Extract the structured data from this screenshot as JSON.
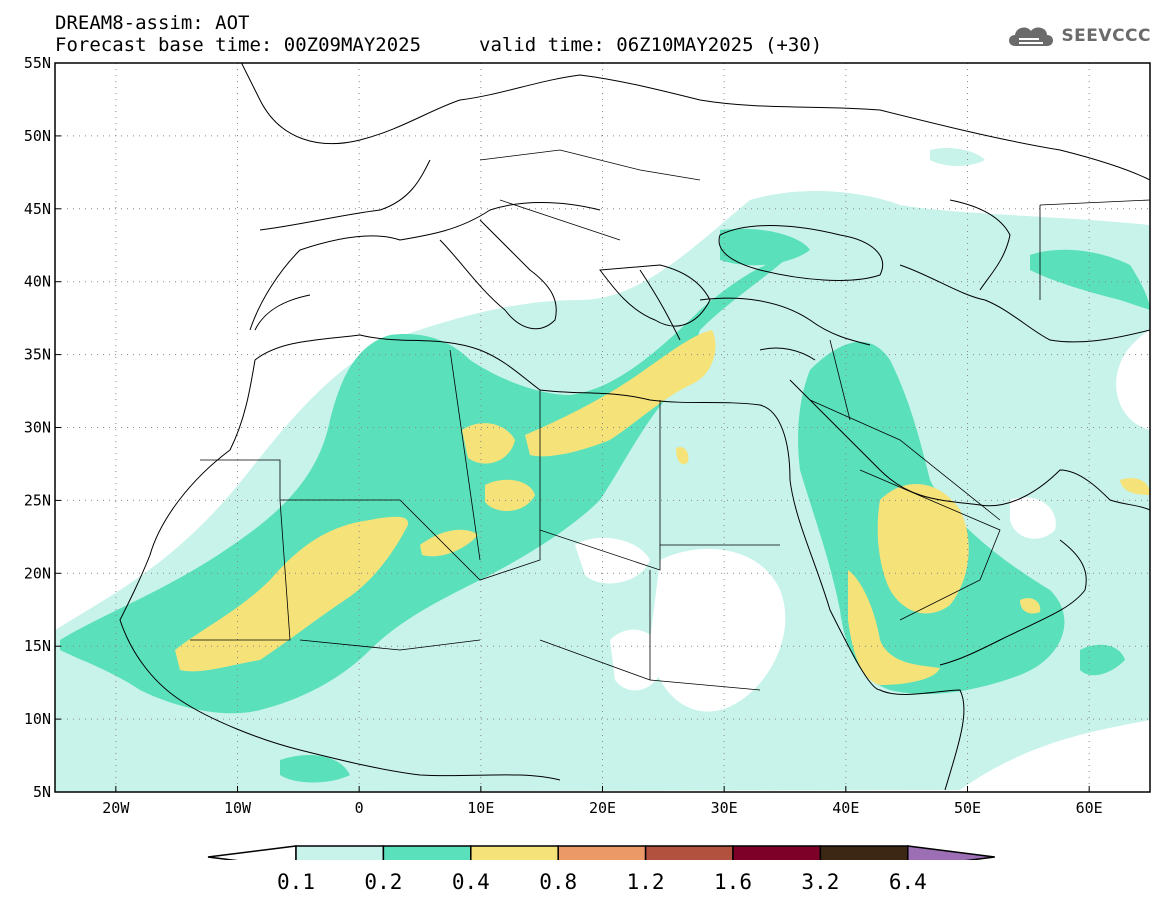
{
  "header": {
    "title_line1": "DREAM8-assim: AOT",
    "title_line2": "Forecast base time: 00Z09MAY2025",
    "valid_time": "valid time: 06Z10MAY2025 (+30)",
    "logo_text": "SEEVCCC",
    "logo_icon": "cloud-icon"
  },
  "map": {
    "lon_range": [
      -25,
      65
    ],
    "lat_range": [
      5,
      55
    ],
    "lat_labels": [
      "55N",
      "50N",
      "45N",
      "40N",
      "35N",
      "30N",
      "25N",
      "20N",
      "15N",
      "10N",
      "5N"
    ],
    "lat_values": [
      55,
      50,
      45,
      40,
      35,
      30,
      25,
      20,
      15,
      10,
      5
    ],
    "lon_labels": [
      "20W",
      "10W",
      "0",
      "10E",
      "20E",
      "30E",
      "40E",
      "50E",
      "60E"
    ],
    "lon_values": [
      -20,
      -10,
      0,
      10,
      20,
      30,
      40,
      50,
      60
    ],
    "gridlines": "dotted"
  },
  "colorbar": {
    "levels": [
      "0.1",
      "0.2",
      "0.4",
      "0.8",
      "1.2",
      "1.6",
      "3.2",
      "6.4"
    ],
    "under_color": "#ffffff",
    "colors": [
      "#c7f3ea",
      "#5ae0bb",
      "#f5e37a",
      "#ec9968",
      "#b1513e",
      "#7d0028",
      "#3c2714"
    ],
    "over_color": "#9c6fb4"
  }
}
